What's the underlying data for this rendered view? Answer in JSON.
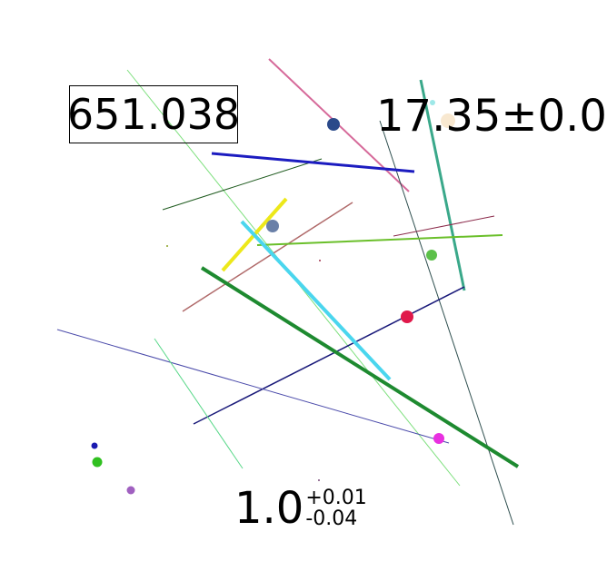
{
  "labels": {
    "boxed_number": "651.038",
    "plus_minus": "17.35±0.0",
    "asymmetric": {
      "base": "1.0",
      "upper": "+0.01",
      "lower": "-0.04"
    }
  },
  "colors": {
    "background": "#ffffff",
    "text": "#000000"
  }
}
